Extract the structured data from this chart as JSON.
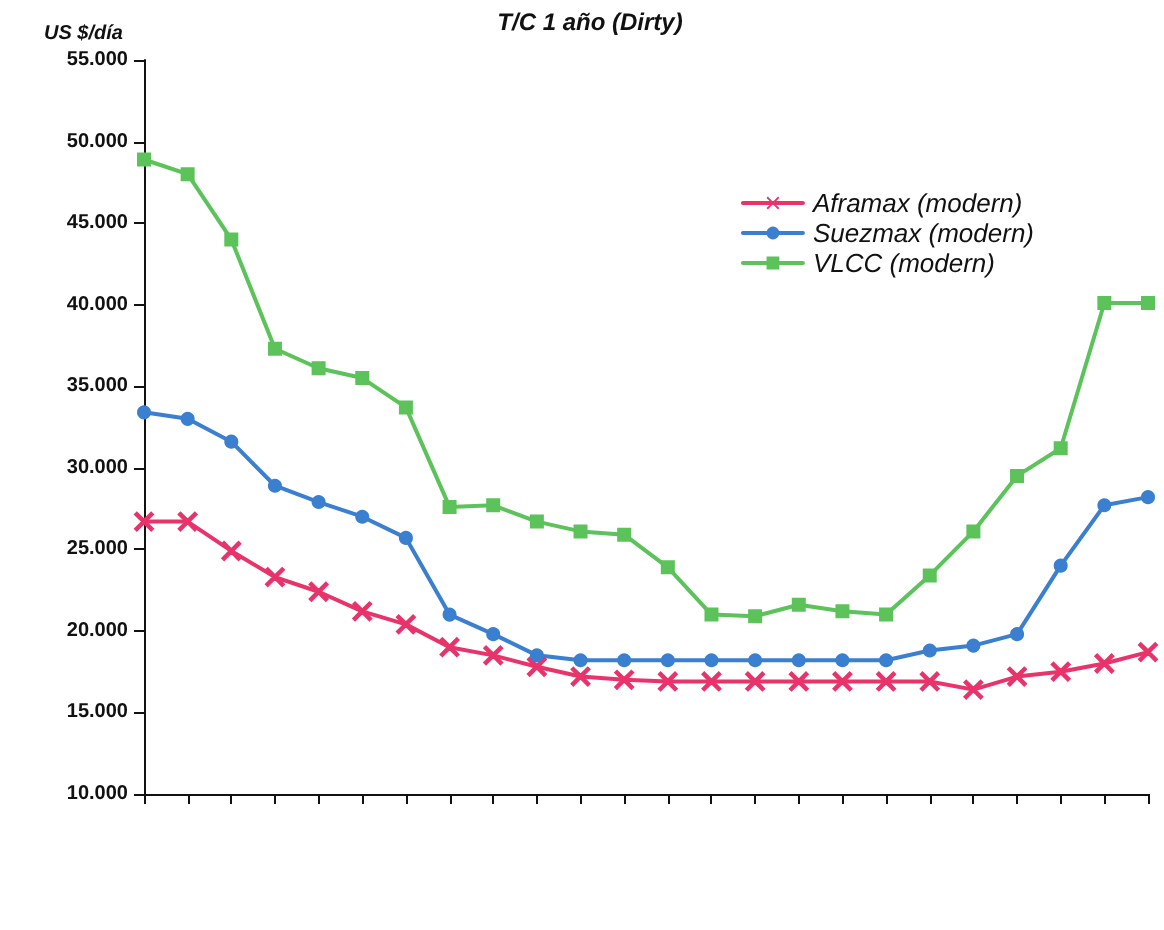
{
  "chart_data": {
    "type": "line",
    "title": "T/C 1 año (Dirty)",
    "ylabel": "US $/día",
    "categories": [
      null,
      null,
      null,
      null,
      null,
      null,
      null,
      null,
      null,
      null,
      null,
      null,
      null,
      null,
      null,
      null,
      null,
      null,
      null,
      null,
      null,
      null,
      null,
      null
    ],
    "series": [
      {
        "name": "Aframax (modern)",
        "color": "#e8336b",
        "marker": "cross",
        "values": [
          26700,
          26700,
          24900,
          23300,
          22400,
          21200,
          20400,
          19000,
          18500,
          17800,
          17200,
          17000,
          16900,
          16900,
          16900,
          16900,
          16900,
          16900,
          16900,
          16400,
          17200,
          17500,
          18000,
          18700
        ]
      },
      {
        "name": "Suezmax (modern)",
        "color": "#3a7fd0",
        "marker": "circle",
        "values": [
          33400,
          33000,
          31600,
          28900,
          27900,
          27000,
          25700,
          21000,
          19800,
          18500,
          18200,
          18200,
          18200,
          18200,
          18200,
          18200,
          18200,
          18200,
          18800,
          19100,
          19800,
          24000,
          27700,
          28200
        ]
      },
      {
        "name": "VLCC (modern)",
        "color": "#5cc25a",
        "marker": "square",
        "values": [
          48900,
          48000,
          44000,
          37300,
          36100,
          35500,
          33700,
          27600,
          27700,
          26700,
          26100,
          25900,
          23900,
          21000,
          20900,
          21600,
          21200,
          21000,
          23400,
          26100,
          29500,
          31200,
          40100,
          40100
        ]
      }
    ],
    "ylim": [
      10000,
      55000
    ],
    "yticks": [
      {
        "value": 10000,
        "label": "10.000"
      },
      {
        "value": 15000,
        "label": "15.000"
      },
      {
        "value": 20000,
        "label": "20.000"
      },
      {
        "value": 25000,
        "label": "25.000"
      },
      {
        "value": 30000,
        "label": "30.000"
      },
      {
        "value": 35000,
        "label": "35.000"
      },
      {
        "value": 40000,
        "label": "40.000"
      },
      {
        "value": 45000,
        "label": "45.000"
      },
      {
        "value": 50000,
        "label": "50.000"
      },
      {
        "value": 55000,
        "label": "55.000"
      }
    ],
    "grid": false,
    "legend": "top right"
  }
}
